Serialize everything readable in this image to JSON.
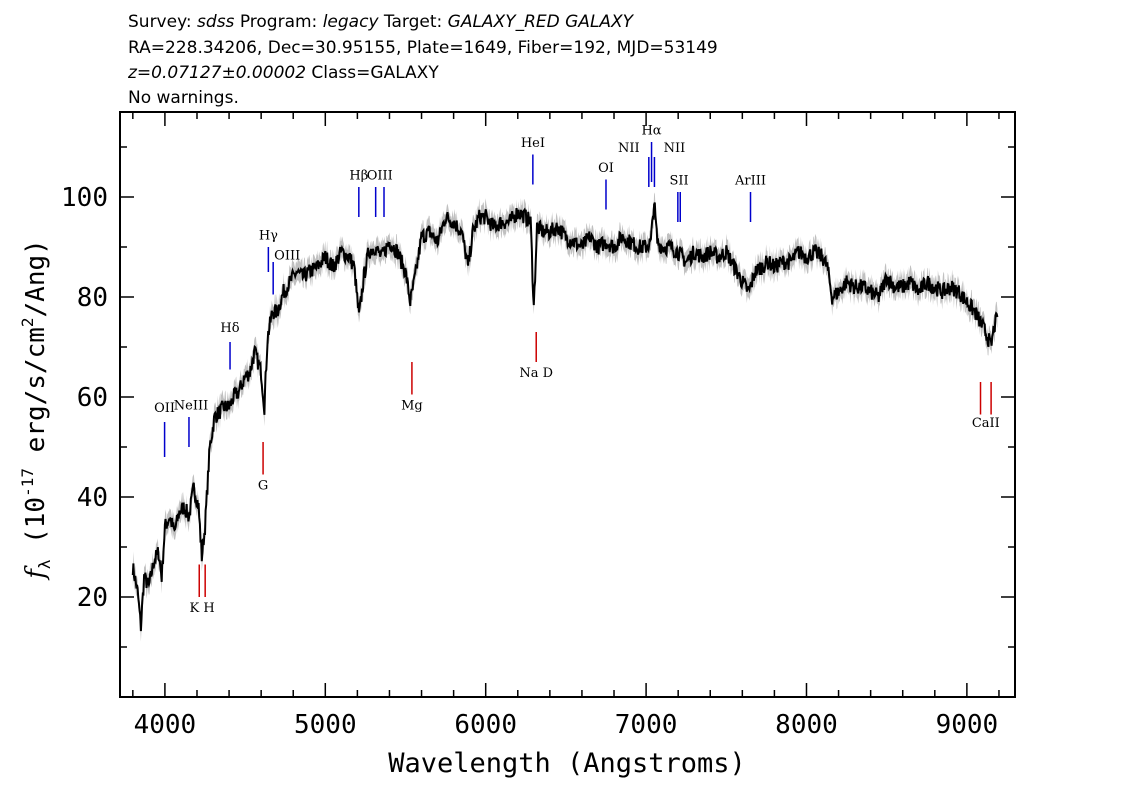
{
  "header": {
    "survey_label": "Survey:",
    "survey": "sdss",
    "program_label": "Program:",
    "program": "legacy",
    "target_label": "Target:",
    "target": "GALAXY_RED GALAXY",
    "line2": "RA=228.34206, Dec=30.95155, Plate=1649, Fiber=192, MJD=53149",
    "redshift": "z=0.07127±0.00002",
    "class_text": "Class=GALAXY",
    "warnings": "No warnings."
  },
  "chart_data": {
    "type": "line",
    "title": "",
    "xlabel": "Wavelength (Angstroms)",
    "ylabel_base": "f",
    "ylabel_sub": "λ",
    "ylabel_pre": " (10",
    "ylabel_exp": "-17",
    "ylabel_mid": " erg/s/cm",
    "ylabel_exp2": "2",
    "ylabel_post": "/Ang)",
    "xlim": [
      3720,
      9300
    ],
    "ylim": [
      0,
      117
    ],
    "x_ticks": [
      4000,
      5000,
      6000,
      7000,
      8000,
      9000
    ],
    "x_tick_labels": [
      "4000",
      "5000",
      "6000",
      "7000",
      "8000",
      "9000"
    ],
    "y_ticks": [
      20,
      40,
      60,
      80,
      100
    ],
    "y_tick_labels": [
      "20",
      "40",
      "60",
      "80",
      "100"
    ],
    "colors": {
      "flux": "#000000",
      "error": "#c0c0c0",
      "emission": "#0000cc",
      "absorption": "#cc0000",
      "axes": "#000000"
    },
    "flux": [
      [
        3800,
        26
      ],
      [
        3830,
        21
      ],
      [
        3850,
        14
      ],
      [
        3870,
        24
      ],
      [
        3900,
        22
      ],
      [
        3930,
        27
      ],
      [
        3960,
        29
      ],
      [
        3980,
        24
      ],
      [
        4000,
        34
      ],
      [
        4030,
        36
      ],
      [
        4060,
        33
      ],
      [
        4090,
        37
      ],
      [
        4120,
        38
      ],
      [
        4150,
        36
      ],
      [
        4180,
        42
      ],
      [
        4210,
        38
      ],
      [
        4230,
        28
      ],
      [
        4250,
        34
      ],
      [
        4280,
        50
      ],
      [
        4310,
        56
      ],
      [
        4340,
        57
      ],
      [
        4370,
        58
      ],
      [
        4400,
        58
      ],
      [
        4430,
        60
      ],
      [
        4460,
        61
      ],
      [
        4500,
        64
      ],
      [
        4530,
        65
      ],
      [
        4560,
        69
      ],
      [
        4600,
        65
      ],
      [
        4620,
        58
      ],
      [
        4640,
        72
      ],
      [
        4670,
        77
      ],
      [
        4700,
        77
      ],
      [
        4740,
        81
      ],
      [
        4780,
        83
      ],
      [
        4820,
        85
      ],
      [
        4860,
        84
      ],
      [
        4900,
        85
      ],
      [
        4950,
        86
      ],
      [
        5000,
        88
      ],
      [
        5050,
        86
      ],
      [
        5100,
        89
      ],
      [
        5150,
        88
      ],
      [
        5180,
        86
      ],
      [
        5210,
        76
      ],
      [
        5240,
        84
      ],
      [
        5270,
        89
      ],
      [
        5310,
        90
      ],
      [
        5350,
        88
      ],
      [
        5400,
        91
      ],
      [
        5450,
        89
      ],
      [
        5500,
        85
      ],
      [
        5530,
        79
      ],
      [
        5560,
        84
      ],
      [
        5600,
        92
      ],
      [
        5650,
        93
      ],
      [
        5700,
        91
      ],
      [
        5750,
        96
      ],
      [
        5800,
        95
      ],
      [
        5850,
        93
      ],
      [
        5890,
        86
      ],
      [
        5920,
        93
      ],
      [
        5960,
        96
      ],
      [
        6000,
        96
      ],
      [
        6050,
        94
      ],
      [
        6100,
        95
      ],
      [
        6150,
        95
      ],
      [
        6200,
        97
      ],
      [
        6250,
        96
      ],
      [
        6280,
        95
      ],
      [
        6300,
        78
      ],
      [
        6320,
        94
      ],
      [
        6360,
        93
      ],
      [
        6400,
        93
      ],
      [
        6450,
        94
      ],
      [
        6500,
        92
      ],
      [
        6550,
        91
      ],
      [
        6600,
        90
      ],
      [
        6650,
        92
      ],
      [
        6700,
        90
      ],
      [
        6750,
        91
      ],
      [
        6800,
        90
      ],
      [
        6850,
        92
      ],
      [
        6900,
        91
      ],
      [
        6950,
        90
      ],
      [
        7000,
        90
      ],
      [
        7030,
        91
      ],
      [
        7050,
        99
      ],
      [
        7070,
        91
      ],
      [
        7100,
        90
      ],
      [
        7150,
        90
      ],
      [
        7200,
        89
      ],
      [
        7250,
        87
      ],
      [
        7300,
        89
      ],
      [
        7350,
        88
      ],
      [
        7400,
        89
      ],
      [
        7450,
        88
      ],
      [
        7500,
        89
      ],
      [
        7550,
        86
      ],
      [
        7600,
        83
      ],
      [
        7640,
        81
      ],
      [
        7680,
        85
      ],
      [
        7720,
        86
      ],
      [
        7760,
        87
      ],
      [
        7800,
        86
      ],
      [
        7850,
        87
      ],
      [
        7900,
        87
      ],
      [
        7950,
        89
      ],
      [
        8000,
        88
      ],
      [
        8050,
        89
      ],
      [
        8100,
        88
      ],
      [
        8130,
        86
      ],
      [
        8160,
        80
      ],
      [
        8200,
        81
      ],
      [
        8250,
        83
      ],
      [
        8300,
        82
      ],
      [
        8350,
        82
      ],
      [
        8400,
        81
      ],
      [
        8450,
        80
      ],
      [
        8500,
        84
      ],
      [
        8550,
        82
      ],
      [
        8600,
        82
      ],
      [
        8650,
        83
      ],
      [
        8700,
        81
      ],
      [
        8750,
        83
      ],
      [
        8800,
        82
      ],
      [
        8850,
        81
      ],
      [
        8900,
        82
      ],
      [
        8950,
        81
      ],
      [
        9000,
        79
      ],
      [
        9050,
        77
      ],
      [
        9100,
        74
      ],
      [
        9130,
        72
      ],
      [
        9150,
        70
      ],
      [
        9170,
        74
      ],
      [
        9190,
        76
      ]
    ],
    "emission_lines": [
      {
        "name": "OII",
        "x": 3998,
        "y0": 48,
        "y1": 55,
        "label_y": 57
      },
      {
        "name": "NeIII",
        "x": 4150,
        "y0": 50,
        "y1": 56,
        "label_y": 57.5
      },
      {
        "name": "Hδ",
        "x": 4406,
        "y0": 65.5,
        "y1": 71,
        "label_y": 73
      },
      {
        "name": "Hγ",
        "x": 4645,
        "y0": 85,
        "y1": 90,
        "label_y": 91.5
      },
      {
        "name": "OIII",
        "x": 4675,
        "y0": 80.5,
        "y1": 87,
        "label_y": 87.5
      },
      {
        "name": "Hβ",
        "x": 5209,
        "y0": 96,
        "y1": 102,
        "label_y": 103.5
      },
      {
        "name": "OIII",
        "x": 5314,
        "y0": 96,
        "y1": 102,
        "label_y": 103.5
      },
      {
        "name": "OIII",
        "x": 5366,
        "y0": 96,
        "y1": 102,
        "label_y": 103.5
      },
      {
        "name": "HeI",
        "x": 6294,
        "y0": 102.5,
        "y1": 108.5,
        "label_y": 110
      },
      {
        "name": "OI",
        "x": 6750,
        "y0": 97.5,
        "y1": 103.5,
        "label_y": 105
      },
      {
        "name": "NII",
        "x": 7017,
        "y0": 102,
        "y1": 108,
        "label_y": 109
      },
      {
        "name": "Hα",
        "x": 7034,
        "y0": 103,
        "y1": 111,
        "label_y": 112.5
      },
      {
        "name": "NII",
        "x": 7052,
        "y0": 102,
        "y1": 108,
        "label_y": 109
      },
      {
        "name": "SII",
        "x": 7198,
        "y0": 95,
        "y1": 101,
        "label_y": 102.5
      },
      {
        "name": "SII",
        "x": 7213,
        "y0": 95,
        "y1": 101,
        "label_y": 102.5
      },
      {
        "name": "ArIII",
        "x": 7651,
        "y0": 95,
        "y1": 101,
        "label_y": 102.5
      }
    ],
    "absorption_lines": [
      {
        "name": "K",
        "x": 4214,
        "y0": 20,
        "y1": 26.5,
        "label_y": 17
      },
      {
        "name": "H",
        "x": 4251,
        "y0": 20,
        "y1": 26.5,
        "label_y": 17
      },
      {
        "name": "G",
        "x": 4612,
        "y0": 44.5,
        "y1": 51,
        "label_y": 41.5
      },
      {
        "name": "Mg",
        "x": 5540,
        "y0": 60.5,
        "y1": 67,
        "label_y": 57.5
      },
      {
        "name": "Na D",
        "x": 6315,
        "y0": 67,
        "y1": 73,
        "label_y": 64
      },
      {
        "name": "CaII",
        "x": 9085,
        "y0": 56.5,
        "y1": 63,
        "label_y": 54
      },
      {
        "name": "CaII",
        "x": 9151,
        "y0": 56.5,
        "y1": 63,
        "label_y": 54
      }
    ],
    "absorption_group_labels": [
      {
        "name": "K H",
        "x": 4232,
        "label_y": 17
      },
      {
        "name": "CaII",
        "x": 9118,
        "label_y": 54
      }
    ]
  }
}
